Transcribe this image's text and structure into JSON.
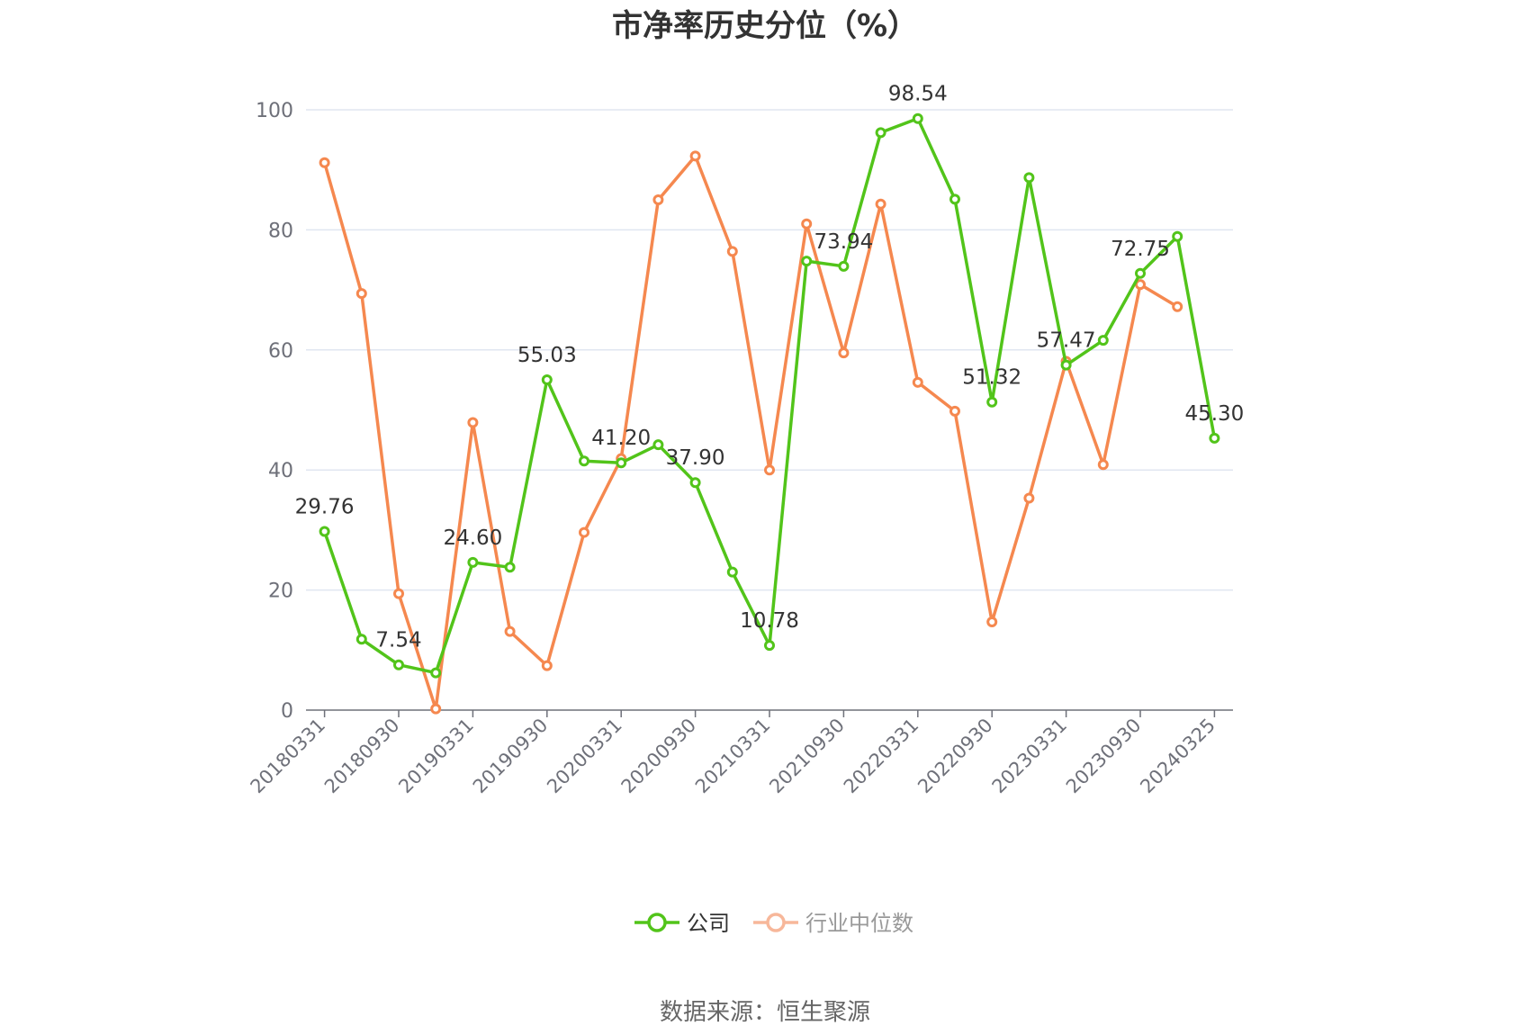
{
  "title": "市净率历史分位（%）",
  "source": "数据来源：恒生聚源",
  "chart_data": {
    "type": "line",
    "title": "市净率历史分位（%）",
    "ylim": [
      0,
      100
    ],
    "yticks": [
      0,
      20,
      40,
      60,
      80,
      100
    ],
    "grid": true,
    "legend_position": "bottom",
    "x": [
      "20180331",
      "20180630",
      "20180930",
      "20181231",
      "20190331",
      "20190630",
      "20190930",
      "20191231",
      "20200331",
      "20200630",
      "20200930",
      "20201231",
      "20210331",
      "20210630",
      "20210930",
      "20211231",
      "20220331",
      "20220630",
      "20220930",
      "20221231",
      "20230331",
      "20230630",
      "20230930",
      "20231231",
      "20240325"
    ],
    "xtick_labels": [
      "20180331",
      "20180930",
      "20190331",
      "20190930",
      "20200331",
      "20200930",
      "20210331",
      "20210930",
      "20220331",
      "20220930",
      "20230331",
      "20230930",
      "20240325"
    ],
    "series": [
      {
        "name": "公司",
        "color": "#52c41a",
        "values": [
          29.76,
          11.8,
          7.54,
          6.2,
          24.6,
          23.8,
          55.03,
          41.5,
          41.2,
          44.2,
          37.9,
          23.0,
          10.78,
          74.8,
          73.94,
          96.2,
          98.54,
          85.1,
          51.32,
          88.7,
          57.47,
          61.6,
          72.75,
          78.9,
          45.3
        ],
        "labels": [
          "29.76",
          "",
          "7.54",
          "",
          "24.60",
          "",
          "55.03",
          "",
          "41.20",
          "",
          "37.90",
          "",
          "10.78",
          "",
          "73.94",
          "",
          "98.54",
          "",
          "51.32",
          "",
          "57.47",
          "",
          "72.75",
          "",
          "45.30"
        ]
      },
      {
        "name": "行业中位数",
        "color": "#f5884f",
        "values": [
          91.2,
          69.4,
          19.4,
          0.2,
          47.9,
          13.1,
          7.4,
          29.6,
          41.9,
          85.0,
          92.3,
          76.4,
          40.0,
          81.0,
          59.5,
          84.3,
          54.6,
          49.8,
          14.7,
          35.3,
          58.1,
          40.9,
          70.9,
          67.2,
          null
        ]
      }
    ]
  }
}
